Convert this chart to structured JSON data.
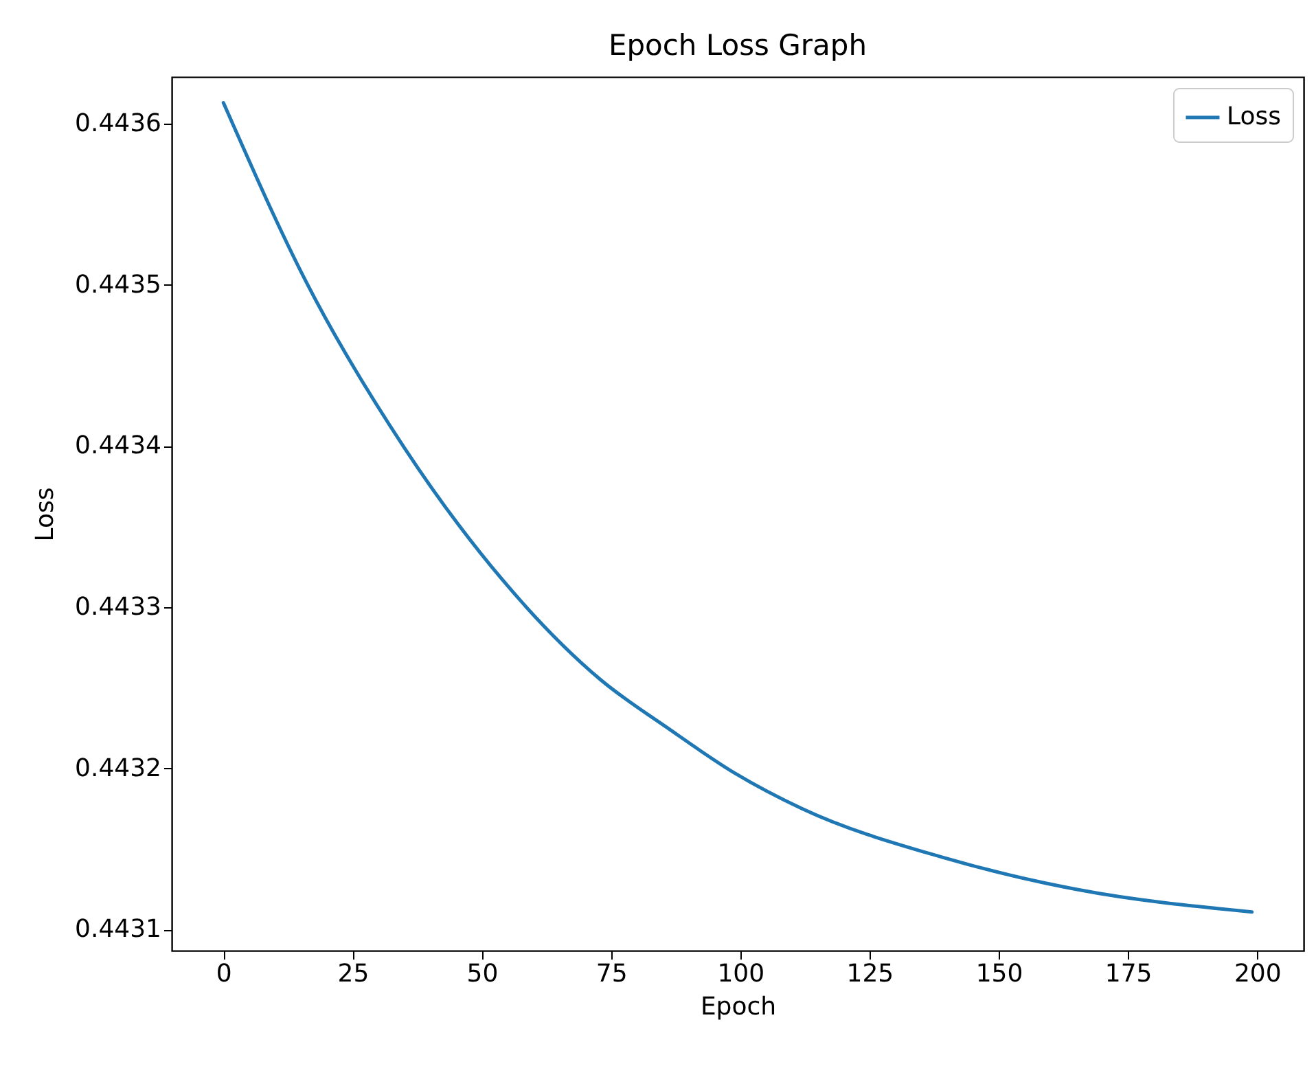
{
  "chart_data": {
    "type": "line",
    "title": "Epoch Loss Graph",
    "xlabel": "Epoch",
    "ylabel": "Loss",
    "x": [
      0,
      16,
      35,
      54,
      73,
      86,
      99,
      112,
      139,
      165,
      199
    ],
    "series": [
      {
        "name": "Loss",
        "color": "#1f77b4",
        "values": [
          0.443613,
          0.443502,
          0.443399,
          0.443317,
          0.443255,
          0.443225,
          0.443197,
          0.443175,
          0.443145,
          0.443125,
          0.443111
        ]
      }
    ],
    "xlim": [
      -10,
      209
    ],
    "xticks": [
      0,
      25,
      50,
      75,
      100,
      125,
      150,
      175,
      200
    ],
    "ylim": [
      0.443087,
      0.443629
    ],
    "yticks": [
      0.4431,
      0.4432,
      0.4433,
      0.4434,
      0.4435,
      0.4436
    ],
    "grid": false,
    "legend": "top right",
    "marker": "none",
    "line_style": "solid"
  }
}
